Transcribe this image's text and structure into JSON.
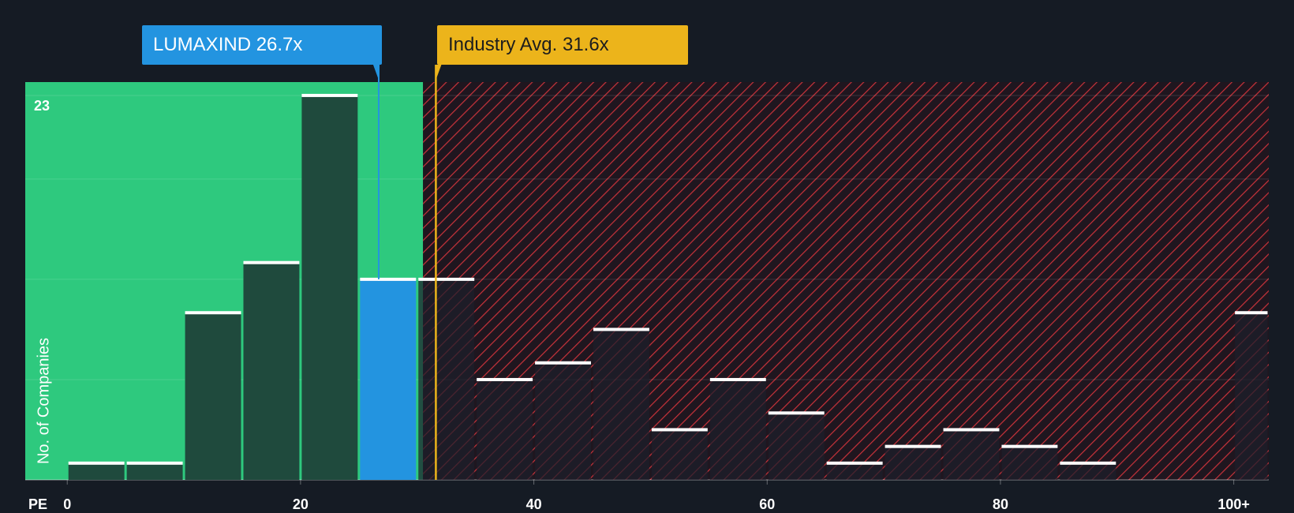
{
  "chart_data": {
    "type": "bar",
    "title": "",
    "xlabel": "PE",
    "ylabel": "No. of Companies",
    "bins": [
      {
        "start": 0,
        "end": 5,
        "count": 1
      },
      {
        "start": 5,
        "end": 10,
        "count": 1
      },
      {
        "start": 10,
        "end": 15,
        "count": 10
      },
      {
        "start": 15,
        "end": 20,
        "count": 13
      },
      {
        "start": 20,
        "end": 25,
        "count": 23
      },
      {
        "start": 25,
        "end": 30,
        "count": 12
      },
      {
        "start": 30,
        "end": 35,
        "count": 12
      },
      {
        "start": 35,
        "end": 40,
        "count": 6
      },
      {
        "start": 40,
        "end": 45,
        "count": 7
      },
      {
        "start": 45,
        "end": 50,
        "count": 9
      },
      {
        "start": 50,
        "end": 55,
        "count": 3
      },
      {
        "start": 55,
        "end": 60,
        "count": 6
      },
      {
        "start": 60,
        "end": 65,
        "count": 4
      },
      {
        "start": 65,
        "end": 70,
        "count": 1
      },
      {
        "start": 70,
        "end": 75,
        "count": 2
      },
      {
        "start": 75,
        "end": 80,
        "count": 3
      },
      {
        "start": 80,
        "end": 85,
        "count": 2
      },
      {
        "start": 85,
        "end": 90,
        "count": 1
      },
      {
        "start": 90,
        "end": 95,
        "count": 0
      },
      {
        "start": 95,
        "end": 100,
        "count": 0
      },
      {
        "start": 100,
        "end": 103,
        "count": 10
      }
    ],
    "x_ticks": [
      "0",
      "20",
      "40",
      "60",
      "80",
      "100+"
    ],
    "x_tick_values": [
      0,
      20,
      40,
      60,
      80,
      100
    ],
    "xlim": [
      -3.6,
      103
    ],
    "ylim": [
      0,
      23.8
    ],
    "y_max_label": "23",
    "gridlines": [
      6,
      12,
      18,
      23
    ],
    "company": {
      "ticker": "LUMAXIND",
      "pe": 26.7,
      "label": "LUMAXIND 26.7x",
      "bin_index": 5
    },
    "industry_avg": {
      "pe": 31.6,
      "label": "Industry Avg. 31.6x"
    },
    "fair_region_end": 30.5,
    "colors": {
      "background": "#151b24",
      "fair_region": "#2ec97e",
      "expensive_region": "#5a1d26",
      "hatch": "#d8353c",
      "bar_fair": "#1f4a3d",
      "bar_expensive": "#1d1f2b",
      "company_bar": "#2394e0",
      "company_line": "#2394e0",
      "industry_line": "#ecb41b",
      "cap": "#ffffff"
    }
  }
}
